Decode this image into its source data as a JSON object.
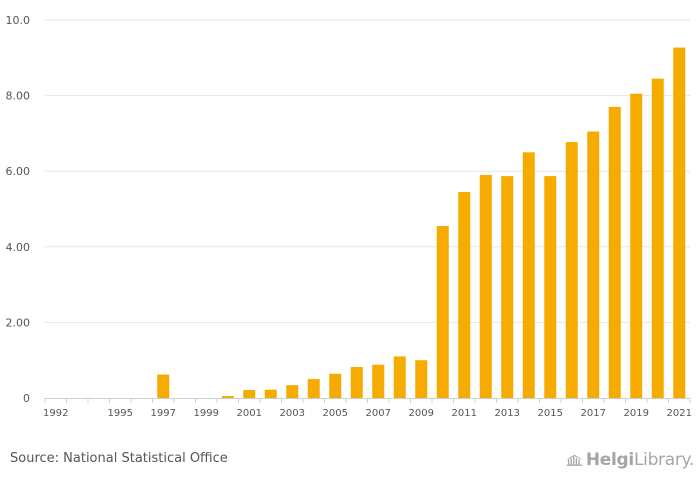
{
  "chart_data": {
    "type": "bar",
    "title": "",
    "xlabel": "",
    "ylabel": "",
    "ylim": [
      0,
      10
    ],
    "yticks": [
      "0",
      "2.00",
      "4.00",
      "6.00",
      "8.00",
      "10.0"
    ],
    "categories": [
      "1992",
      "1993",
      "1994",
      "1995",
      "1996",
      "1997",
      "1998",
      "1999",
      "2000",
      "2001",
      "2002",
      "2003",
      "2004",
      "2005",
      "2006",
      "2007",
      "2008",
      "2009",
      "2010",
      "2011",
      "2012",
      "2013",
      "2014",
      "2015",
      "2016",
      "2017",
      "2018",
      "2019",
      "2020",
      "2021"
    ],
    "xticklabels": [
      "1992",
      "1995",
      "1997",
      "1999",
      "2001",
      "2003",
      "2005",
      "2007",
      "2009",
      "2011",
      "2013",
      "2015",
      "2017",
      "2019",
      "2021"
    ],
    "values": [
      0,
      0,
      0,
      0,
      0,
      0.62,
      0,
      0,
      0.05,
      0.21,
      0.22,
      0.34,
      0.5,
      0.64,
      0.82,
      0.88,
      1.1,
      1.0,
      4.55,
      5.45,
      5.9,
      5.87,
      6.5,
      5.87,
      6.77,
      7.05,
      7.7,
      8.05,
      8.45,
      9.27
    ],
    "bar_color": "#f5ab00",
    "grid": true
  },
  "footer": {
    "source": "Source: National Statistical Office",
    "brand_name": "Helgi",
    "brand_suffix": "Library."
  },
  "colors": {
    "grid": "#e6e6e6",
    "axis": "#cfcfcf",
    "label": "#555555",
    "brand": "#a5a5a5"
  }
}
